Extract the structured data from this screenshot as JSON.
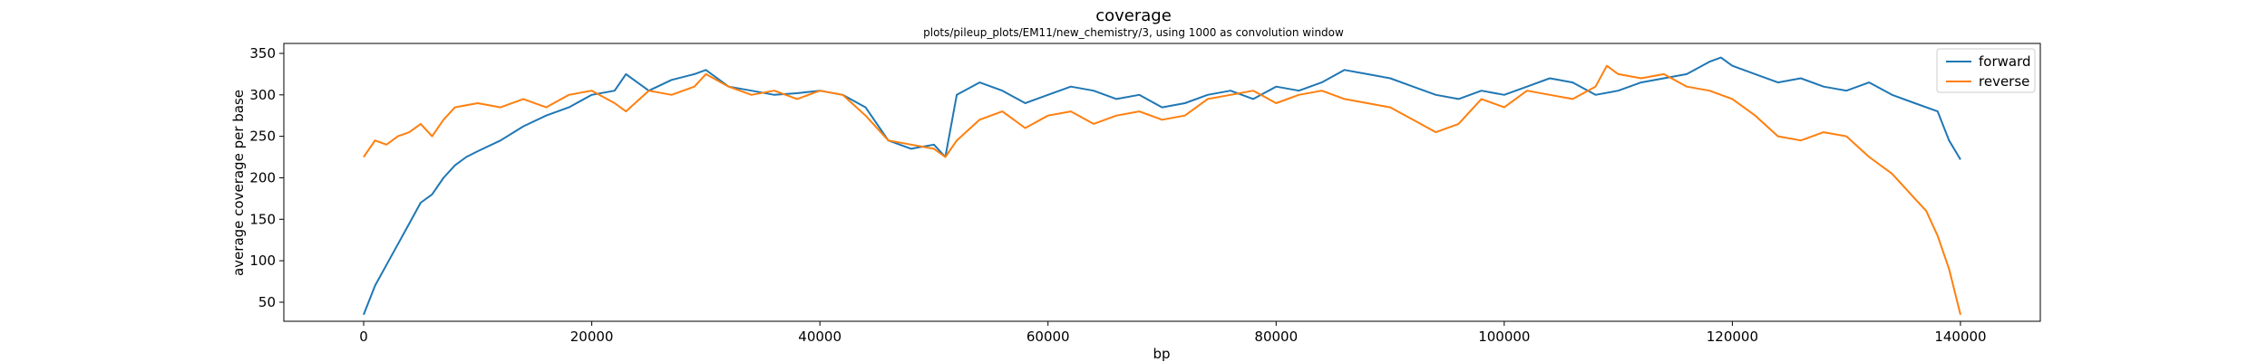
{
  "chart_data": {
    "type": "line",
    "title": "coverage",
    "subtitle": "plots/pileup_plots/EM11/new_chemistry/3, using 1000 as convolution window",
    "xlabel": "bp",
    "ylabel": "average coverage per base",
    "xlim": [
      -7000,
      147000
    ],
    "ylim": [
      27,
      362
    ],
    "xticks": [
      0,
      20000,
      40000,
      60000,
      80000,
      100000,
      120000,
      140000
    ],
    "yticks": [
      50,
      100,
      150,
      200,
      250,
      300,
      350
    ],
    "legend_position": "top-right",
    "grid": false,
    "series": [
      {
        "name": "forward",
        "color": "#1f77b4",
        "x": [
          0,
          1000,
          2000,
          3000,
          4000,
          5000,
          6000,
          7000,
          8000,
          9000,
          10000,
          12000,
          14000,
          16000,
          18000,
          20000,
          22000,
          23000,
          25000,
          27000,
          29000,
          30000,
          32000,
          34000,
          36000,
          38000,
          40000,
          42000,
          44000,
          46000,
          48000,
          50000,
          51000,
          52000,
          54000,
          56000,
          58000,
          60000,
          62000,
          64000,
          66000,
          68000,
          70000,
          72000,
          74000,
          76000,
          78000,
          80000,
          82000,
          84000,
          86000,
          88000,
          90000,
          92000,
          94000,
          96000,
          98000,
          100000,
          102000,
          104000,
          106000,
          108000,
          110000,
          112000,
          114000,
          116000,
          118000,
          119000,
          120000,
          122000,
          124000,
          126000,
          128000,
          130000,
          132000,
          134000,
          136000,
          138000,
          139000,
          140000
        ],
        "values": [
          35,
          70,
          95,
          120,
          145,
          170,
          180,
          200,
          215,
          225,
          232,
          245,
          262,
          275,
          285,
          300,
          305,
          325,
          305,
          318,
          325,
          330,
          310,
          305,
          300,
          302,
          305,
          300,
          285,
          245,
          235,
          240,
          225,
          300,
          315,
          305,
          290,
          300,
          310,
          305,
          295,
          300,
          285,
          290,
          300,
          305,
          295,
          310,
          305,
          315,
          330,
          325,
          320,
          310,
          300,
          295,
          305,
          300,
          310,
          320,
          315,
          300,
          305,
          315,
          320,
          325,
          340,
          345,
          335,
          325,
          315,
          320,
          310,
          305,
          315,
          300,
          290,
          280,
          245,
          222
        ]
      },
      {
        "name": "reverse",
        "color": "#ff7f0e",
        "x": [
          0,
          1000,
          2000,
          3000,
          4000,
          5000,
          6000,
          7000,
          8000,
          10000,
          12000,
          14000,
          16000,
          18000,
          20000,
          22000,
          23000,
          25000,
          27000,
          29000,
          30000,
          32000,
          34000,
          36000,
          38000,
          40000,
          42000,
          44000,
          46000,
          48000,
          50000,
          51000,
          52000,
          54000,
          56000,
          58000,
          60000,
          62000,
          64000,
          66000,
          68000,
          70000,
          72000,
          74000,
          76000,
          78000,
          80000,
          82000,
          84000,
          86000,
          88000,
          90000,
          92000,
          94000,
          96000,
          98000,
          100000,
          102000,
          104000,
          106000,
          108000,
          109000,
          110000,
          112000,
          114000,
          116000,
          118000,
          120000,
          122000,
          124000,
          126000,
          128000,
          130000,
          132000,
          134000,
          136000,
          137000,
          138000,
          139000,
          140000
        ],
        "values": [
          225,
          245,
          240,
          250,
          255,
          265,
          250,
          270,
          285,
          290,
          285,
          295,
          285,
          300,
          305,
          290,
          280,
          305,
          300,
          310,
          325,
          310,
          300,
          305,
          295,
          305,
          300,
          275,
          245,
          240,
          235,
          225,
          245,
          270,
          280,
          260,
          275,
          280,
          265,
          275,
          280,
          270,
          275,
          295,
          300,
          305,
          290,
          300,
          305,
          295,
          290,
          285,
          270,
          255,
          265,
          295,
          285,
          305,
          300,
          295,
          310,
          335,
          325,
          320,
          325,
          310,
          305,
          295,
          275,
          250,
          245,
          255,
          250,
          225,
          205,
          175,
          160,
          130,
          90,
          35
        ]
      }
    ]
  }
}
